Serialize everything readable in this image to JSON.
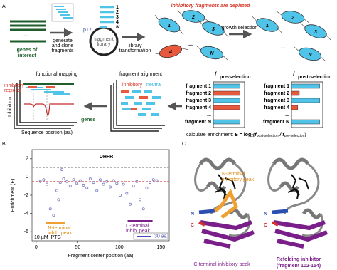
{
  "panel_a": {
    "label": "A",
    "genes_ellipsis": "...",
    "genes_label": [
      "genes of",
      "interest"
    ],
    "step_clone": [
      "generate",
      "and clone",
      "fragments"
    ],
    "promoter": "pT7",
    "library_label": [
      "fragment",
      "library"
    ],
    "library_list": [
      "1",
      "2",
      "3",
      "4",
      "N"
    ],
    "step_transform": [
      "library",
      "transformation"
    ],
    "depleted_note": "inhibitory fragments are depleted",
    "cells_before": [
      "1",
      "2",
      "3",
      "4",
      "N"
    ],
    "cells_ellipsis": "...",
    "step_growth": "growth selection",
    "cells_after": [
      "1",
      "2",
      "3",
      "N"
    ],
    "mapping_title": "functional mapping",
    "mapping_regions": [
      "inhibitory",
      "regions"
    ],
    "mapping_ylabel": "Inhibition",
    "mapping_xlabel": "Sequence position (aa)",
    "mapping_genes": "genes",
    "alignment_title": "fragment alignment",
    "alignment_legend": [
      "inhibitory",
      "neutral"
    ],
    "pre": {
      "f": "f",
      "sub": "pre-selection",
      "values": [
        0.85,
        0.85,
        0.85,
        0.85,
        0.85
      ],
      "colors": [
        "#4fc3e8",
        "#e8583c",
        "#4fc3e8",
        "#e8583c",
        "#4fc3e8"
      ]
    },
    "post": {
      "f": "f",
      "sub": "post-selection",
      "values": [
        0.9,
        0.25,
        0.9,
        0.2,
        0.9
      ],
      "colors": [
        "#4fc3e8",
        "#e8583c",
        "#4fc3e8",
        "#e8583c",
        "#4fc3e8"
      ]
    },
    "fragments": [
      "fragment 1",
      "fragment 2",
      "fragment 3",
      "fragment 4",
      "...",
      "fragment N"
    ],
    "formula": [
      "calculate enrichment: ",
      "E",
      " = log",
      "2",
      "(f",
      "post-selection",
      " / f",
      "pre-selection",
      ")"
    ]
  },
  "chart_data": {
    "type": "scatter",
    "panel_label": "B",
    "title": "DHFR",
    "x_label": "Fragment center position (aa)",
    "y_label": "Enrichment (E)",
    "xlim": [
      -5,
      160
    ],
    "xticks": [
      0,
      50,
      100,
      150
    ],
    "ylim": [
      -7,
      3
    ],
    "yticks": [
      2,
      0,
      -2,
      -4,
      -6
    ],
    "reference_lines": [
      {
        "value": 1,
        "color": "#9e9e9e"
      },
      {
        "value": -0.5,
        "color": "#d94040"
      }
    ],
    "series": [
      {
        "color": "#7b7fbf",
        "x": [
          5,
          9,
          13,
          17,
          21,
          25,
          27,
          29,
          31,
          33,
          37,
          41,
          45,
          49,
          53,
          57,
          61,
          65,
          69,
          73,
          77,
          81,
          85,
          89,
          93,
          97,
          101,
          105,
          109,
          113,
          117,
          121,
          125,
          129,
          133,
          137,
          141,
          145
        ],
        "values": [
          -0.5,
          -0.3,
          -0.8,
          -3.5,
          -4.2,
          -1.5,
          -2.5,
          -0.6,
          0.8,
          -0.2,
          -0.5,
          -1.0,
          -0.3,
          -0.7,
          -0.4,
          -0.9,
          -1.2,
          -0.2,
          -0.6,
          -1.5,
          -0.3,
          -0.8,
          -0.5,
          -1.1,
          -0.4,
          -0.7,
          -2.0,
          -0.8,
          -1.8,
          -3.0,
          -1.0,
          -0.5,
          -2.5,
          -3.5,
          -1.2,
          -0.6,
          -0.3,
          -0.4
        ]
      }
    ],
    "annotations": {
      "n_peak": [
        "N-terminal",
        "inhib. peak"
      ],
      "c_peak": [
        "C-terminal",
        "inhib. peak"
      ],
      "condition": "10 µM IPTG",
      "scale": "30 aa"
    }
  },
  "panel_c": {
    "label": "C",
    "n_peak": [
      "N-terminal",
      "inhibitory peak"
    ],
    "c_peak": "C-terminal inhibitory peak",
    "refolding": [
      "Refolding inhibitor",
      "(fragment 102-154)"
    ],
    "termini": [
      "N",
      "C"
    ]
  }
}
